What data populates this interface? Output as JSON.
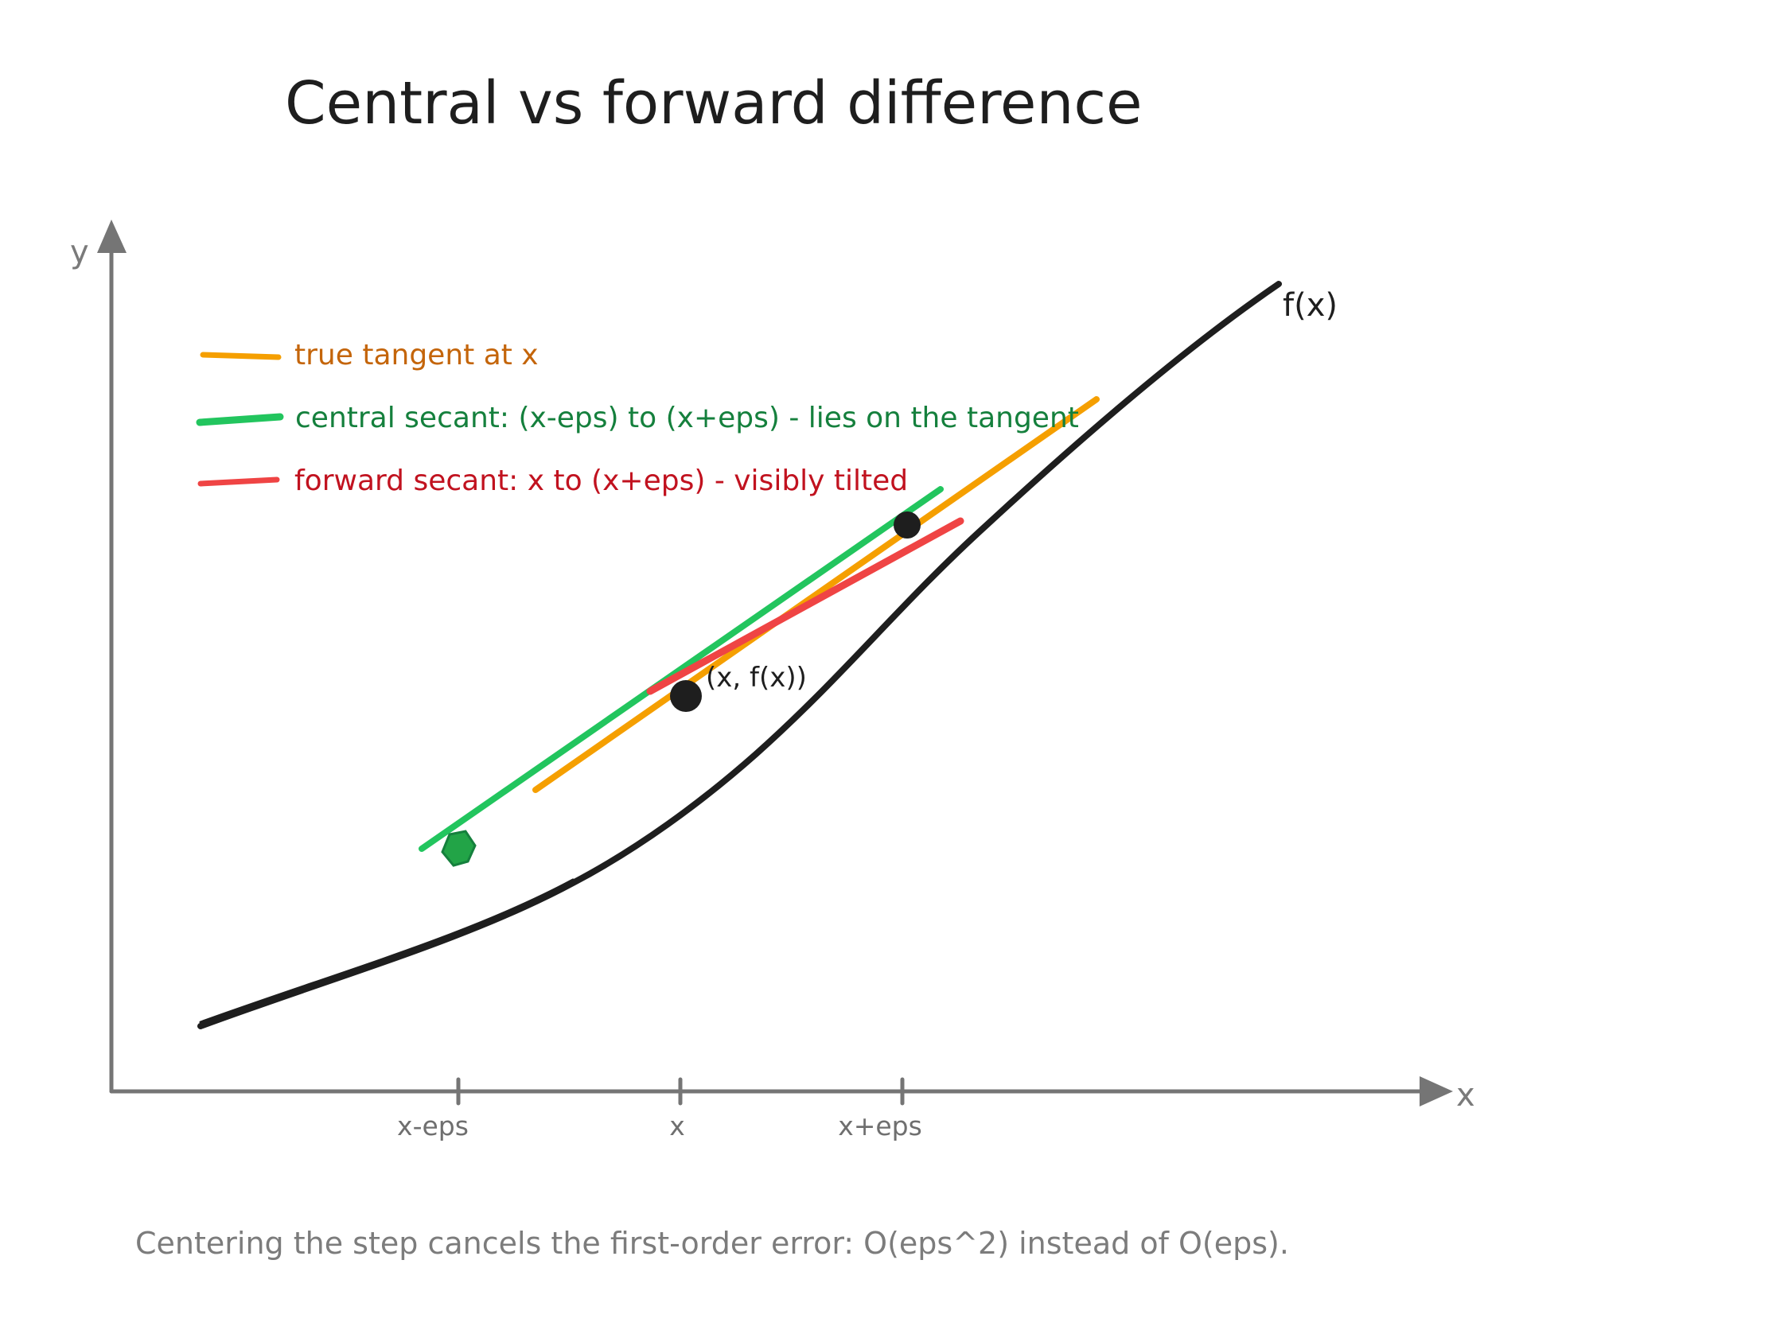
{
  "title": "Central vs forward difference",
  "axes": {
    "x_label": "x",
    "y_label": "y",
    "ticks": [
      "x-eps",
      "x",
      "x+eps"
    ]
  },
  "curve": {
    "label": "f(x)"
  },
  "point_label": "(x, f(x))",
  "legend": {
    "items": [
      {
        "text": "true tangent at x",
        "color": "#f59f00",
        "text_color": "#c4650a"
      },
      {
        "text": "central secant: (x-eps) to (x+eps) - lies on the tangent",
        "color": "#22c55e",
        "text_color": "#15803d"
      },
      {
        "text": "forward secant: x to (x+eps) - visibly tilted",
        "color": "#ef4444",
        "text_color": "#c1121f"
      }
    ]
  },
  "caption": "Centering the step cancels the first-order error: O(eps^2) instead of O(eps).",
  "colors": {
    "axis": "#757575",
    "curve": "#1e1e1e",
    "tangent": "#f59f00",
    "central": "#22c55e",
    "forward": "#ef4444",
    "point": "#1e1e1e",
    "central_marker": "#22a447"
  }
}
